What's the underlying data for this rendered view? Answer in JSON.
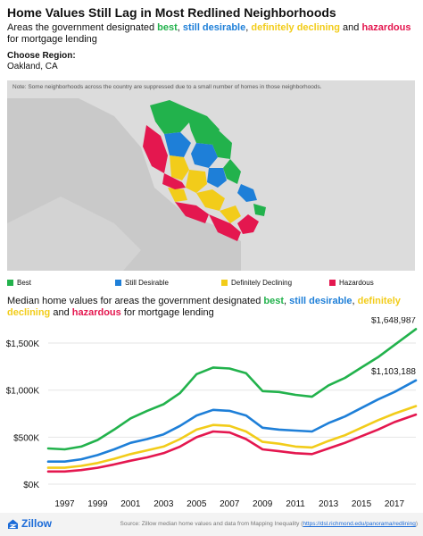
{
  "header": {
    "title": "Home Values Still Lag in Most Redlined Neighborhoods",
    "subtitle_pre": "Areas the government designated ",
    "subtitle_best": "best",
    "subtitle_sep1": ", ",
    "subtitle_desirable": "still desirable",
    "subtitle_sep2": ", ",
    "subtitle_declining": "definitely declining",
    "subtitle_and": " and ",
    "subtitle_hazardous": "hazardous",
    "subtitle_post": " for mortgage lending"
  },
  "region": {
    "label": "Choose Region:",
    "value": "Oakland, CA"
  },
  "map": {
    "note": "Note: Some neighborhoods across the country are suppressed due to a small number of homes in those neighborhoods.",
    "legend": [
      "Best",
      "Still Desirable",
      "Definitely Declining",
      "Hazardous"
    ]
  },
  "chart_title": {
    "pre": "Median home values for areas the government designated ",
    "best": "best",
    "sep1": ", ",
    "desirable": "still desirable",
    "sep2": ", ",
    "declining": "definitely declining",
    "and": " and ",
    "hazardous": "hazardous",
    "post": " for mortgage lending"
  },
  "colors": {
    "best": "#22b24c",
    "still_desirable": "#1e7fd8",
    "definitely_declining": "#f2cc1a",
    "hazardous": "#e4174f"
  },
  "chart_data": {
    "type": "line",
    "y_ticks": [
      "$0K",
      "$500K",
      "$1,000K",
      "$1,500K"
    ],
    "y_tick_values": [
      0,
      500,
      1000,
      1500
    ],
    "x_ticks": [
      "1997",
      "1999",
      "2001",
      "2003",
      "2005",
      "2007",
      "2009",
      "2011",
      "2013",
      "2015",
      "2017"
    ],
    "x_tick_values": [
      1997,
      1999,
      2001,
      2003,
      2005,
      2007,
      2009,
      2011,
      2013,
      2015,
      2017
    ],
    "xlim": [
      1996,
      2018.3
    ],
    "ylim": [
      0,
      1700
    ],
    "grid": "horizontal",
    "x": [
      1996,
      1997,
      1998,
      1999,
      2000,
      2001,
      2002,
      2003,
      2004,
      2005,
      2006,
      2007,
      2008,
      2009,
      2010,
      2011,
      2012,
      2013,
      2014,
      2015,
      2016,
      2017,
      2018.3
    ],
    "series": [
      {
        "name": "Best",
        "color": "#22b24c",
        "values": [
          380,
          370,
          400,
          470,
          580,
          700,
          780,
          850,
          970,
          1170,
          1240,
          1230,
          1180,
          990,
          980,
          950,
          930,
          1050,
          1130,
          1240,
          1350,
          1480,
          1648.987
        ]
      },
      {
        "name": "Still Desirable",
        "color": "#1e7fd8",
        "values": [
          240,
          240,
          265,
          310,
          370,
          440,
          480,
          530,
          620,
          730,
          790,
          780,
          730,
          600,
          580,
          570,
          560,
          650,
          720,
          810,
          900,
          980,
          1103.188
        ]
      },
      {
        "name": "Definitely Declining",
        "color": "#f2cc1a",
        "values": [
          175,
          175,
          195,
          225,
          270,
          320,
          360,
          400,
          480,
          580,
          630,
          620,
          560,
          450,
          430,
          400,
          390,
          460,
          520,
          600,
          680,
          750,
          830
        ]
      },
      {
        "name": "Hazardous",
        "color": "#e4174f",
        "values": [
          135,
          135,
          150,
          175,
          210,
          250,
          285,
          330,
          400,
          500,
          560,
          550,
          480,
          370,
          350,
          330,
          320,
          380,
          440,
          510,
          580,
          660,
          740
        ]
      }
    ],
    "annotations": [
      "$1,648,987",
      "$1,103,188"
    ]
  },
  "footer": {
    "logo": "Zillow",
    "source_text": "Source: Zillow median home values and data from Mapping Inequality (",
    "source_link": "https://dsl.richmond.edu/panorama/redlining",
    "source_close": ")"
  }
}
